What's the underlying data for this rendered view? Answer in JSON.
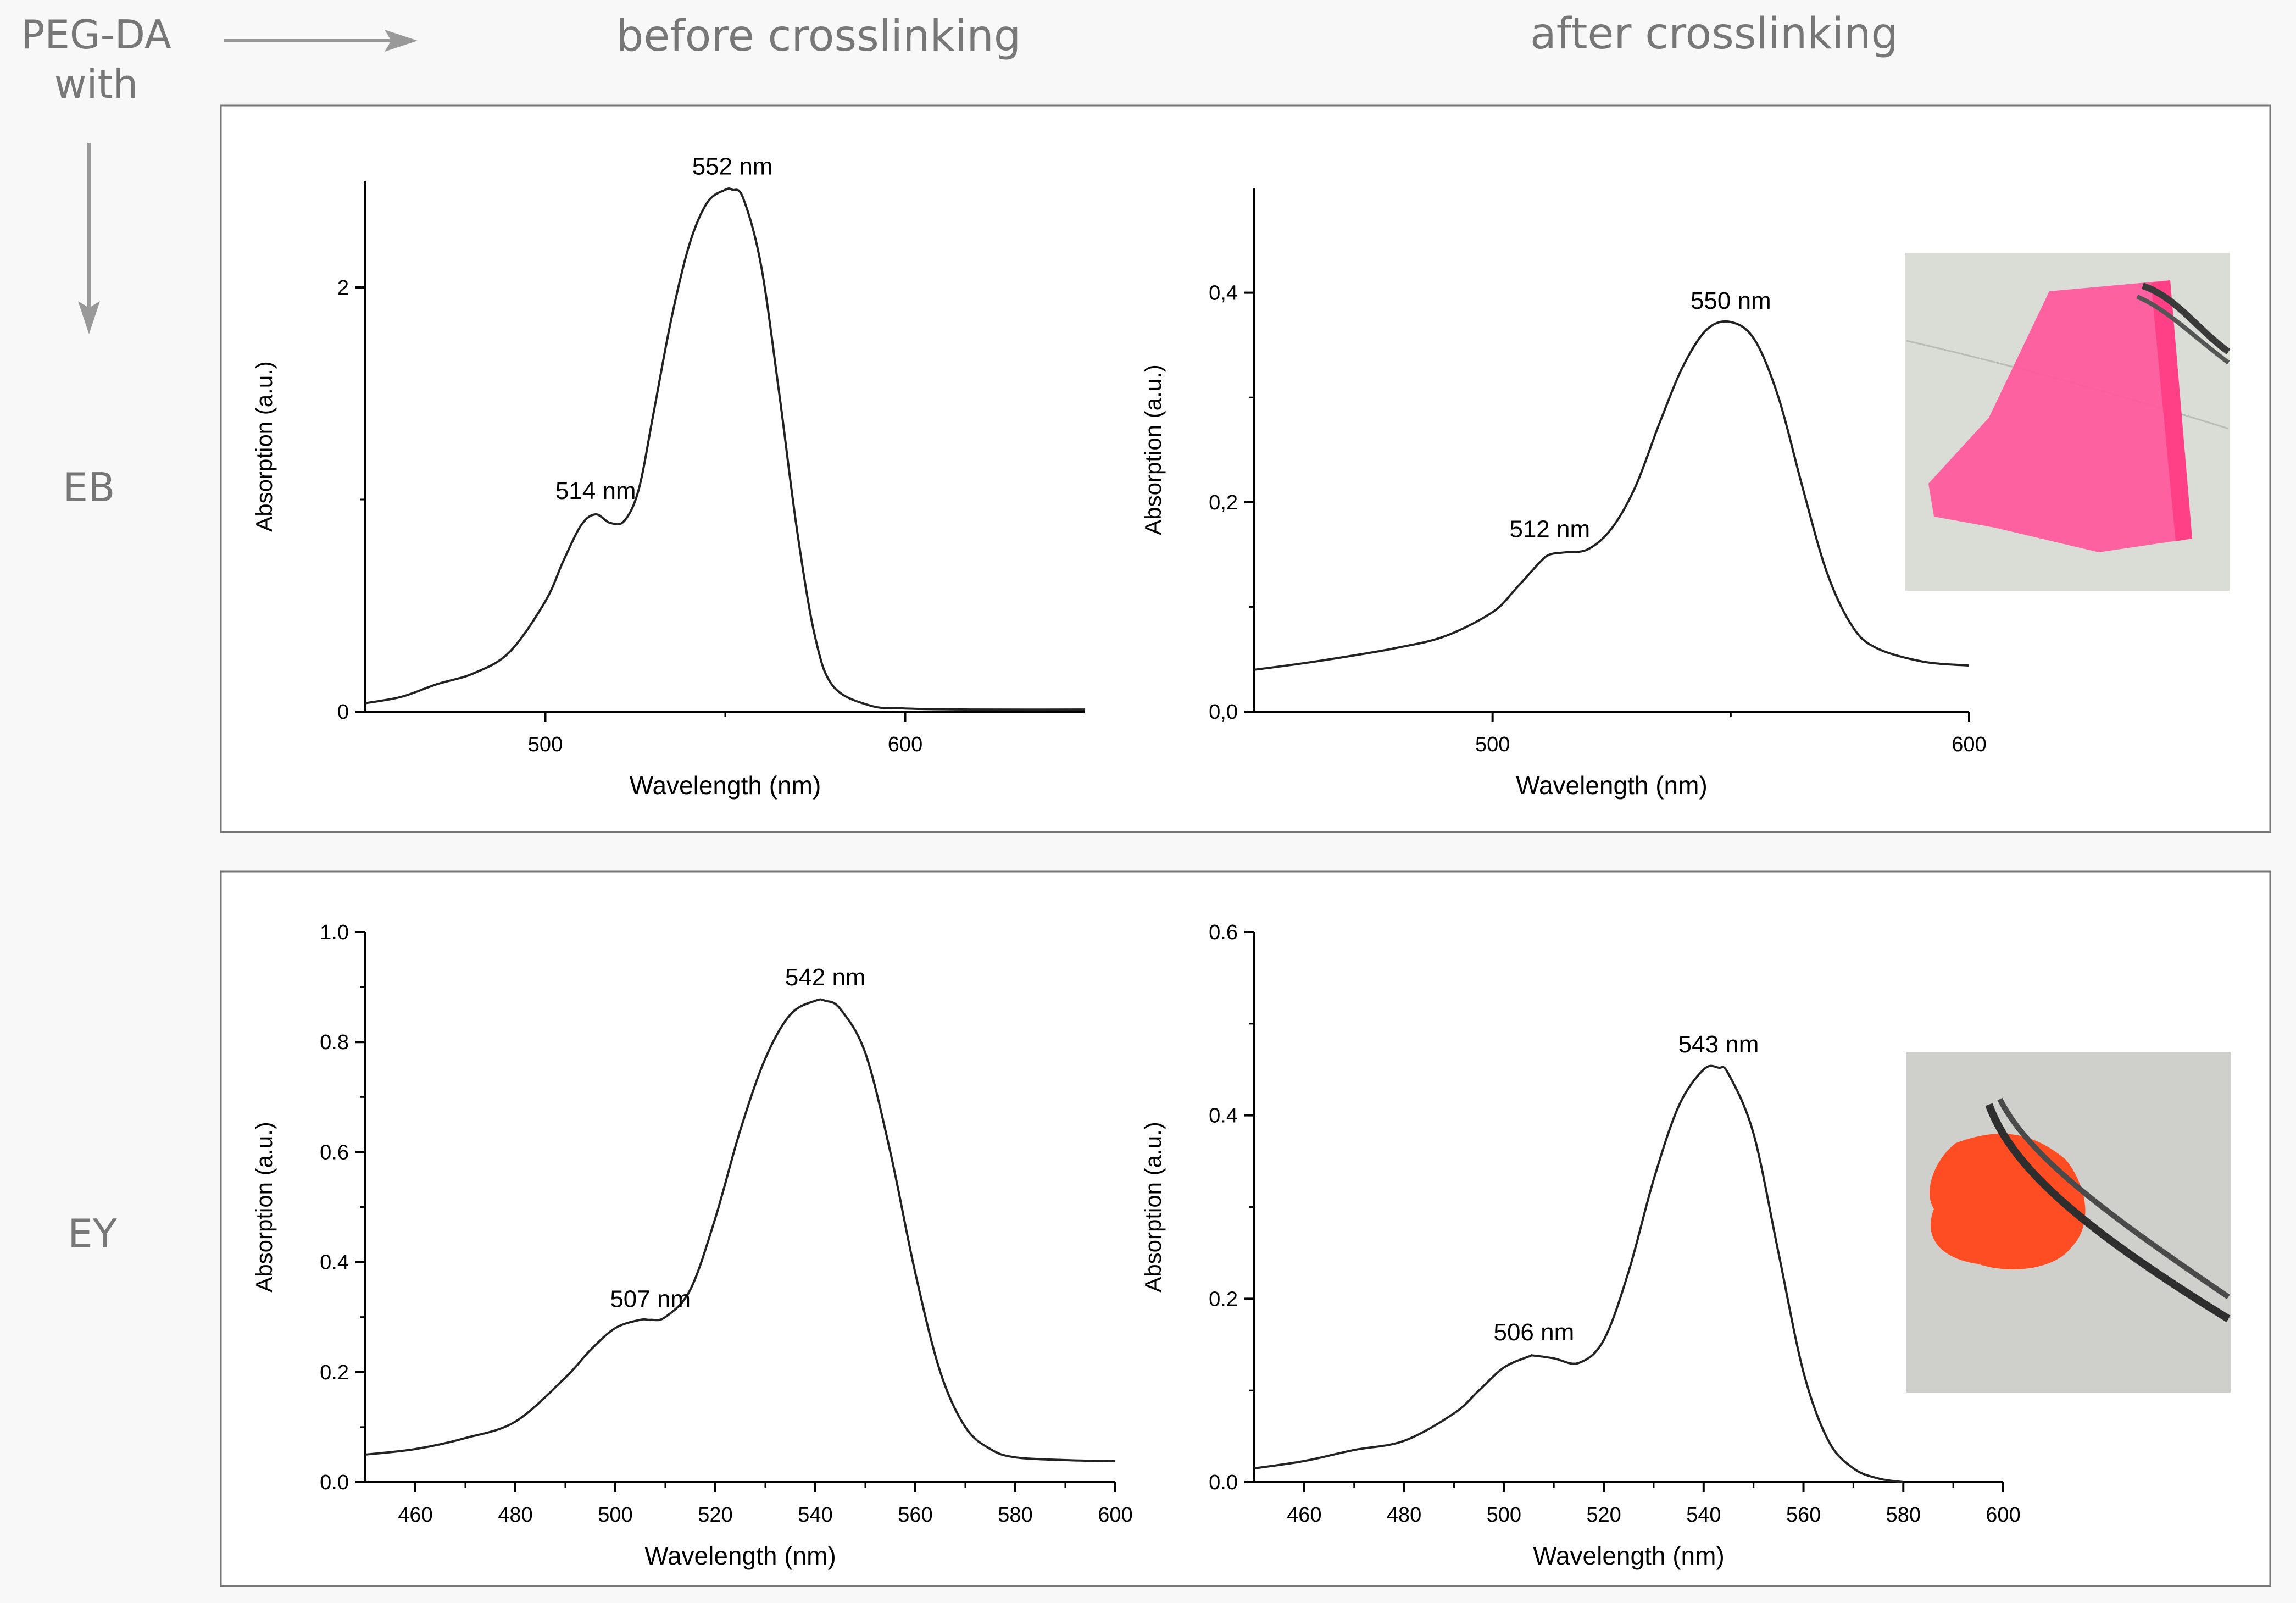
{
  "header": {
    "corner_label": "PEG-DA\nwith",
    "col_before": "before crosslinking",
    "col_after": "after crosslinking"
  },
  "rows": [
    {
      "label": "EB"
    },
    {
      "label": "EY"
    }
  ],
  "photos": [
    {
      "caption": "pink PEG-DA film with EB held by tweezers",
      "color": "#ff4f9a"
    },
    {
      "caption": "orange PEG-DA film with EY held by tweezers",
      "color": "#ff5a2a"
    }
  ],
  "chart_data": [
    {
      "type": "line",
      "id": "eb-before",
      "xlabel": "Wavelength (nm)",
      "ylabel": "Absorption (a.u.)",
      "xlim": [
        450,
        650
      ],
      "ylim": [
        0,
        2.5
      ],
      "xticks": [
        500,
        600
      ],
      "xtick_labels": [
        "500",
        "600"
      ],
      "yticks": [
        0,
        2
      ],
      "ytick_labels": [
        "0",
        "2"
      ],
      "annotations": [
        {
          "text": "552 nm",
          "x": 552,
          "y": 2.46
        },
        {
          "text": "514 nm",
          "x": 514,
          "y": 0.93
        }
      ],
      "series": [
        {
          "name": "EB before",
          "x": [
            450,
            460,
            470,
            480,
            490,
            500,
            505,
            510,
            514,
            518,
            522,
            526,
            530,
            535,
            540,
            545,
            550,
            552,
            555,
            560,
            565,
            570,
            575,
            580,
            590,
            600,
            620,
            650
          ],
          "y": [
            0.04,
            0.07,
            0.13,
            0.18,
            0.28,
            0.52,
            0.71,
            0.88,
            0.93,
            0.89,
            0.9,
            1.05,
            1.4,
            1.85,
            2.2,
            2.4,
            2.46,
            2.46,
            2.42,
            2.1,
            1.5,
            0.85,
            0.35,
            0.12,
            0.03,
            0.015,
            0.01,
            0.01
          ]
        }
      ]
    },
    {
      "type": "line",
      "id": "eb-after",
      "xlabel": "Wavelength (nm)",
      "ylabel": "Absorption (a.u.)",
      "xlim": [
        450,
        600
      ],
      "ylim": [
        0,
        0.5
      ],
      "xticks": [
        500,
        600
      ],
      "xtick_labels": [
        "500",
        "600"
      ],
      "yticks": [
        0,
        0.2,
        0.4
      ],
      "ytick_labels": [
        "0,0",
        "0,2",
        "0,4"
      ],
      "annotations": [
        {
          "text": "550 nm",
          "x": 550,
          "y": 0.37
        },
        {
          "text": "512 nm",
          "x": 512,
          "y": 0.152
        }
      ],
      "series": [
        {
          "name": "EB after",
          "x": [
            450,
            460,
            470,
            480,
            490,
            500,
            505,
            510,
            512,
            515,
            520,
            525,
            530,
            535,
            540,
            545,
            550,
            555,
            560,
            565,
            570,
            575,
            580,
            590,
            600
          ],
          "y": [
            0.04,
            0.046,
            0.053,
            0.061,
            0.072,
            0.095,
            0.118,
            0.143,
            0.15,
            0.152,
            0.155,
            0.175,
            0.215,
            0.275,
            0.33,
            0.365,
            0.372,
            0.355,
            0.3,
            0.215,
            0.135,
            0.085,
            0.062,
            0.048,
            0.044
          ]
        }
      ]
    },
    {
      "type": "line",
      "id": "ey-before",
      "xlabel": "Wavelength (nm)",
      "ylabel": "Absorption (a.u.)",
      "xlim": [
        450,
        600
      ],
      "ylim": [
        0,
        1.0
      ],
      "xticks": [
        460,
        480,
        500,
        520,
        540,
        560,
        580,
        600
      ],
      "xtick_labels": [
        "460",
        "480",
        "500",
        "520",
        "540",
        "560",
        "580",
        "600"
      ],
      "yticks": [
        0,
        0.2,
        0.4,
        0.6,
        0.8,
        1.0
      ],
      "ytick_labels": [
        "0.0",
        "0.2",
        "0.4",
        "0.6",
        "0.8",
        "1.0"
      ],
      "annotations": [
        {
          "text": "542 nm",
          "x": 542,
          "y": 0.875
        },
        {
          "text": "507 nm",
          "x": 507,
          "y": 0.29
        }
      ],
      "series": [
        {
          "name": "EY before",
          "x": [
            450,
            460,
            470,
            480,
            490,
            495,
            500,
            505,
            507,
            510,
            515,
            520,
            525,
            530,
            535,
            540,
            542,
            545,
            550,
            555,
            560,
            565,
            570,
            575,
            580,
            590,
            600
          ],
          "y": [
            0.05,
            0.06,
            0.08,
            0.11,
            0.19,
            0.24,
            0.28,
            0.295,
            0.295,
            0.3,
            0.35,
            0.48,
            0.64,
            0.77,
            0.85,
            0.875,
            0.875,
            0.86,
            0.78,
            0.6,
            0.38,
            0.2,
            0.1,
            0.06,
            0.045,
            0.04,
            0.038
          ]
        }
      ]
    },
    {
      "type": "line",
      "id": "ey-after",
      "xlabel": "Wavelength (nm)",
      "ylabel": "Absorption (a.u.)",
      "xlim": [
        450,
        600
      ],
      "ylim": [
        0,
        0.6
      ],
      "xticks": [
        460,
        480,
        500,
        520,
        540,
        560,
        580,
        600
      ],
      "xtick_labels": [
        "460",
        "480",
        "500",
        "520",
        "540",
        "560",
        "580",
        "600"
      ],
      "yticks": [
        0,
        0.2,
        0.4,
        0.6
      ],
      "ytick_labels": [
        "0.0",
        "0.2",
        "0.4",
        "0.6"
      ],
      "annotations": [
        {
          "text": "543 nm",
          "x": 543,
          "y": 0.452
        },
        {
          "text": "506 nm",
          "x": 506,
          "y": 0.138
        }
      ],
      "series": [
        {
          "name": "EY after",
          "x": [
            450,
            460,
            470,
            480,
            490,
            495,
            500,
            505,
            506,
            510,
            515,
            520,
            525,
            530,
            535,
            540,
            543,
            545,
            550,
            555,
            560,
            565,
            570,
            575,
            580
          ],
          "y": [
            0.015,
            0.023,
            0.035,
            0.045,
            0.075,
            0.1,
            0.125,
            0.137,
            0.138,
            0.135,
            0.13,
            0.155,
            0.23,
            0.33,
            0.41,
            0.45,
            0.452,
            0.445,
            0.38,
            0.25,
            0.12,
            0.045,
            0.015,
            0.004,
            0.0
          ]
        }
      ]
    }
  ]
}
